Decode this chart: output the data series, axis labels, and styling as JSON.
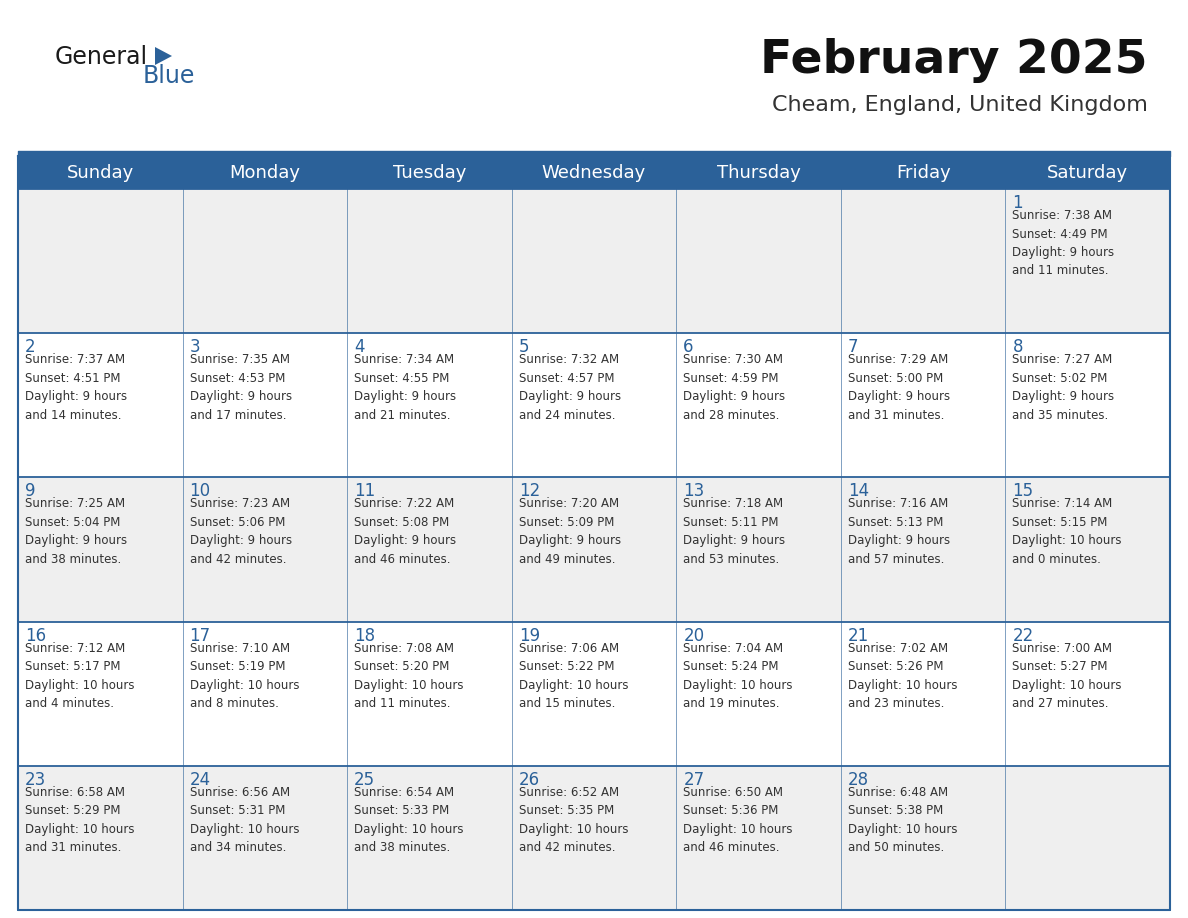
{
  "title": "February 2025",
  "subtitle": "Cheam, England, United Kingdom",
  "header_bg": "#2B6199",
  "header_text_color": "#FFFFFF",
  "cell_bg_light": "#EFEFEF",
  "cell_bg_white": "#FFFFFF",
  "day_number_color": "#2B6199",
  "cell_text_color": "#333333",
  "border_color": "#2B6199",
  "separator_color": "#2B6199",
  "days_of_week": [
    "Sunday",
    "Monday",
    "Tuesday",
    "Wednesday",
    "Thursday",
    "Friday",
    "Saturday"
  ],
  "calendar_data": [
    [
      null,
      null,
      null,
      null,
      null,
      null,
      {
        "day": 1,
        "sunrise": "7:38 AM",
        "sunset": "4:49 PM",
        "daylight": "9 hours\nand 11 minutes."
      }
    ],
    [
      {
        "day": 2,
        "sunrise": "7:37 AM",
        "sunset": "4:51 PM",
        "daylight": "9 hours\nand 14 minutes."
      },
      {
        "day": 3,
        "sunrise": "7:35 AM",
        "sunset": "4:53 PM",
        "daylight": "9 hours\nand 17 minutes."
      },
      {
        "day": 4,
        "sunrise": "7:34 AM",
        "sunset": "4:55 PM",
        "daylight": "9 hours\nand 21 minutes."
      },
      {
        "day": 5,
        "sunrise": "7:32 AM",
        "sunset": "4:57 PM",
        "daylight": "9 hours\nand 24 minutes."
      },
      {
        "day": 6,
        "sunrise": "7:30 AM",
        "sunset": "4:59 PM",
        "daylight": "9 hours\nand 28 minutes."
      },
      {
        "day": 7,
        "sunrise": "7:29 AM",
        "sunset": "5:00 PM",
        "daylight": "9 hours\nand 31 minutes."
      },
      {
        "day": 8,
        "sunrise": "7:27 AM",
        "sunset": "5:02 PM",
        "daylight": "9 hours\nand 35 minutes."
      }
    ],
    [
      {
        "day": 9,
        "sunrise": "7:25 AM",
        "sunset": "5:04 PM",
        "daylight": "9 hours\nand 38 minutes."
      },
      {
        "day": 10,
        "sunrise": "7:23 AM",
        "sunset": "5:06 PM",
        "daylight": "9 hours\nand 42 minutes."
      },
      {
        "day": 11,
        "sunrise": "7:22 AM",
        "sunset": "5:08 PM",
        "daylight": "9 hours\nand 46 minutes."
      },
      {
        "day": 12,
        "sunrise": "7:20 AM",
        "sunset": "5:09 PM",
        "daylight": "9 hours\nand 49 minutes."
      },
      {
        "day": 13,
        "sunrise": "7:18 AM",
        "sunset": "5:11 PM",
        "daylight": "9 hours\nand 53 minutes."
      },
      {
        "day": 14,
        "sunrise": "7:16 AM",
        "sunset": "5:13 PM",
        "daylight": "9 hours\nand 57 minutes."
      },
      {
        "day": 15,
        "sunrise": "7:14 AM",
        "sunset": "5:15 PM",
        "daylight": "10 hours\nand 0 minutes."
      }
    ],
    [
      {
        "day": 16,
        "sunrise": "7:12 AM",
        "sunset": "5:17 PM",
        "daylight": "10 hours\nand 4 minutes."
      },
      {
        "day": 17,
        "sunrise": "7:10 AM",
        "sunset": "5:19 PM",
        "daylight": "10 hours\nand 8 minutes."
      },
      {
        "day": 18,
        "sunrise": "7:08 AM",
        "sunset": "5:20 PM",
        "daylight": "10 hours\nand 11 minutes."
      },
      {
        "day": 19,
        "sunrise": "7:06 AM",
        "sunset": "5:22 PM",
        "daylight": "10 hours\nand 15 minutes."
      },
      {
        "day": 20,
        "sunrise": "7:04 AM",
        "sunset": "5:24 PM",
        "daylight": "10 hours\nand 19 minutes."
      },
      {
        "day": 21,
        "sunrise": "7:02 AM",
        "sunset": "5:26 PM",
        "daylight": "10 hours\nand 23 minutes."
      },
      {
        "day": 22,
        "sunrise": "7:00 AM",
        "sunset": "5:27 PM",
        "daylight": "10 hours\nand 27 minutes."
      }
    ],
    [
      {
        "day": 23,
        "sunrise": "6:58 AM",
        "sunset": "5:29 PM",
        "daylight": "10 hours\nand 31 minutes."
      },
      {
        "day": 24,
        "sunrise": "6:56 AM",
        "sunset": "5:31 PM",
        "daylight": "10 hours\nand 34 minutes."
      },
      {
        "day": 25,
        "sunrise": "6:54 AM",
        "sunset": "5:33 PM",
        "daylight": "10 hours\nand 38 minutes."
      },
      {
        "day": 26,
        "sunrise": "6:52 AM",
        "sunset": "5:35 PM",
        "daylight": "10 hours\nand 42 minutes."
      },
      {
        "day": 27,
        "sunrise": "6:50 AM",
        "sunset": "5:36 PM",
        "daylight": "10 hours\nand 46 minutes."
      },
      {
        "day": 28,
        "sunrise": "6:48 AM",
        "sunset": "5:38 PM",
        "daylight": "10 hours\nand 50 minutes."
      },
      null
    ]
  ],
  "logo_general_color": "#1a1a1a",
  "logo_blue_color": "#2B6199",
  "title_fontsize": 34,
  "subtitle_fontsize": 16,
  "header_fontsize": 13,
  "day_num_fontsize": 12,
  "cell_text_fontsize": 8.5
}
